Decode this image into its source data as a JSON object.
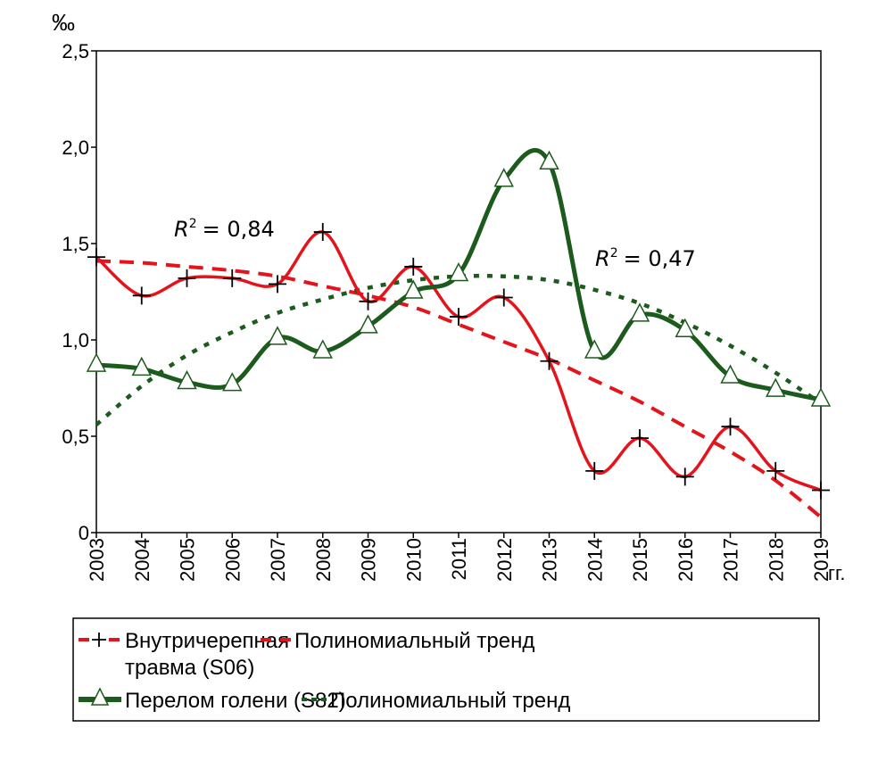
{
  "chart_data": {
    "type": "line",
    "unit_label": "‰",
    "x_suffix": "гг.",
    "x": [
      "2003",
      "2004",
      "2005",
      "2006",
      "2007",
      "2008",
      "2009",
      "2010",
      "2011",
      "2012",
      "2013",
      "2014",
      "2015",
      "2016",
      "2017",
      "2018",
      "2019"
    ],
    "ylim": [
      0,
      2.5
    ],
    "yticks": [
      0,
      0.5,
      1.0,
      1.5,
      2.0,
      2.5
    ],
    "ytick_labels": [
      "0",
      "0,5",
      "1,0",
      "1,5",
      "2,0",
      "2,5"
    ],
    "series": [
      {
        "name": "Внутричерепная травма (S06)",
        "legend_line1": "Внутричерепная",
        "legend_line2": "травма (S06)",
        "color": "#e3141b",
        "marker": "plus",
        "values": [
          1.43,
          1.23,
          1.32,
          1.32,
          1.29,
          1.56,
          1.2,
          1.38,
          1.12,
          1.22,
          0.89,
          0.32,
          0.49,
          0.29,
          0.55,
          0.32,
          0.22
        ]
      },
      {
        "name": "Полиномиальный тренд",
        "color": "#e3141b",
        "style": "dashed",
        "r2_label": "R",
        "r2_value": "= 0,84",
        "values": [
          1.41,
          1.4,
          1.38,
          1.36,
          1.33,
          1.28,
          1.23,
          1.17,
          1.08,
          0.99,
          0.9,
          0.79,
          0.68,
          0.55,
          0.42,
          0.27,
          0.08
        ]
      },
      {
        "name": "Перелом голени (S82)",
        "color": "#1d5a1d",
        "marker": "triangle",
        "values": [
          0.87,
          0.85,
          0.78,
          0.77,
          1.01,
          0.94,
          1.07,
          1.25,
          1.34,
          1.83,
          1.92,
          0.94,
          1.13,
          1.05,
          0.81,
          0.74,
          0.69
        ]
      },
      {
        "name": "Полиномиальный тренд",
        "color": "#1d5a1d",
        "style": "dotted",
        "r2_label": "R",
        "r2_value": "= 0,47",
        "values": [
          0.56,
          0.76,
          0.92,
          1.04,
          1.14,
          1.21,
          1.27,
          1.31,
          1.33,
          1.33,
          1.31,
          1.26,
          1.19,
          1.09,
          0.97,
          0.83,
          0.67
        ]
      }
    ],
    "legend_position": "bottom",
    "grid": false
  }
}
